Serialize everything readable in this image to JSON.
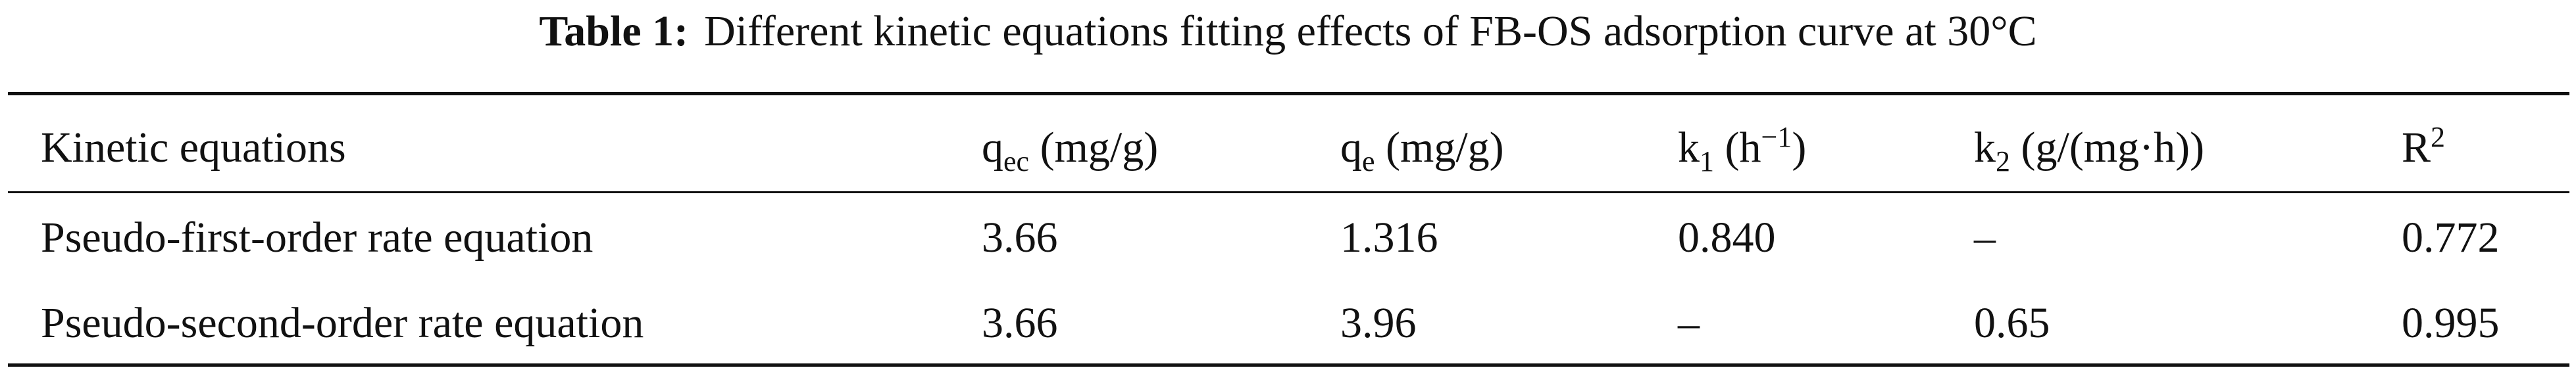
{
  "title": {
    "label": "Table 1:",
    "text": "Different kinetic equations fitting effects of FB-OS adsorption curve at 30°C"
  },
  "table": {
    "header": [
      [
        {
          "text": "Kinetic equations"
        }
      ],
      [
        {
          "text": "q"
        },
        {
          "text": "ec",
          "script": "sub"
        },
        {
          "text": " (mg/g)"
        }
      ],
      [
        {
          "text": "q"
        },
        {
          "text": "e",
          "script": "sub"
        },
        {
          "text": " (mg/g)"
        }
      ],
      [
        {
          "text": "k"
        },
        {
          "text": "1",
          "script": "sub"
        },
        {
          "text": " (h"
        },
        {
          "text": "−1",
          "script": "sup"
        },
        {
          "text": ")"
        }
      ],
      [
        {
          "text": "k"
        },
        {
          "text": "2",
          "script": "sub"
        },
        {
          "text": " (g/(mg·h))"
        }
      ],
      [
        {
          "text": "R"
        },
        {
          "text": "2",
          "script": "sup"
        }
      ]
    ],
    "rows": [
      [
        "Pseudo-first-order rate equation",
        "3.66",
        "1.316",
        "0.840",
        "–",
        "0.772"
      ],
      [
        "Pseudo-second-order rate equation",
        "3.66",
        "3.96",
        "–",
        "0.65",
        "0.995"
      ]
    ]
  }
}
